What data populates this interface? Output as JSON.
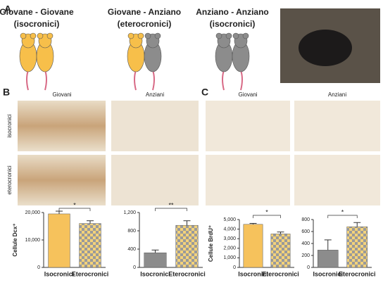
{
  "panel_a": {
    "label": "A",
    "groups": [
      {
        "title": "Giovane - Giovane",
        "subtitle": "(isocronici)"
      },
      {
        "title": "Giovane - Anziano",
        "subtitle": "(eterocronici)"
      },
      {
        "title": "Anziano - Anziano",
        "subtitle": "(isocronici)"
      }
    ]
  },
  "panel_b": {
    "label": "B",
    "columns": [
      "Giovani",
      "Anziani"
    ],
    "rows": [
      "isocronici",
      "eterocronici"
    ]
  },
  "panel_c": {
    "label": "C",
    "columns": [
      "Giovani",
      "Anziani"
    ]
  },
  "chart_data": [
    {
      "type": "bar",
      "ylabel": "Cellule Dcx⁺",
      "categories": [
        "Isocronici",
        "Eterocronici"
      ],
      "values": [
        19500,
        16000
      ],
      "errors": [
        1000,
        1000
      ],
      "bar_fills": [
        "#f6c25c",
        "checkered"
      ],
      "ylim": [
        0,
        20000
      ],
      "yticks": [
        0,
        {
          "value": 10000,
          "label": "10,000"
        },
        {
          "value": 20000,
          "label": "20,000"
        }
      ],
      "significance": "*"
    },
    {
      "type": "bar",
      "categories": [
        "Isocronici",
        "Eterocronici"
      ],
      "values": [
        320,
        920
      ],
      "errors": [
        60,
        100
      ],
      "bar_fills": [
        "#8c8c8c",
        "checkered"
      ],
      "ylim": [
        0,
        1200
      ],
      "yticks": [
        0,
        400,
        800,
        {
          "value": 1200,
          "label": "1,200"
        }
      ],
      "significance": "**"
    },
    {
      "type": "bar",
      "ylabel": "Cellule BrdU⁺",
      "categories": [
        "Isocronici",
        "Eterocronici"
      ],
      "values": [
        4500,
        3500
      ],
      "errors": [
        100,
        200
      ],
      "bar_fills": [
        "#f6c25c",
        "checkered"
      ],
      "ylim": [
        0,
        5000
      ],
      "yticks": [
        0,
        {
          "value": 1000,
          "label": "1,000"
        },
        {
          "value": 2000,
          "label": "2,000"
        },
        {
          "value": 3000,
          "label": "3,000"
        },
        {
          "value": 4000,
          "label": "4,000"
        },
        {
          "value": 5000,
          "label": "5,000"
        }
      ],
      "significance": "*"
    },
    {
      "type": "bar",
      "categories": [
        "Isocronici",
        "Eterocronici"
      ],
      "values": [
        290,
        680
      ],
      "errors": [
        170,
        70
      ],
      "bar_fills": [
        "#8c8c8c",
        "checkered"
      ],
      "ylim": [
        0,
        800
      ],
      "yticks": [
        0,
        200,
        400,
        600,
        800
      ],
      "significance": "*"
    }
  ]
}
